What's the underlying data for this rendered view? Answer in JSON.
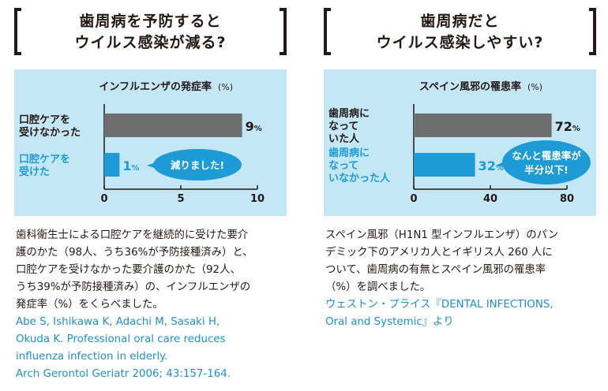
{
  "panels": [
    {
      "headline": [
        "歯周病を予防すると",
        "ウイルス感染が減る?"
      ],
      "caption": [
        "歯科衛生士による口腔ケアを継続的に受けた要介",
        "護のかた（98人、うち36%が予防接種済み）と、",
        "口腔ケアを受けなかった要介護のかた（92人、",
        "うち39%が予防接種済み）の、インフルエンザの",
        "発症率（%）をくらべました。"
      ],
      "reference": [
        "Abe S, Ishikawa K, Adachi M, Sasaki H,",
        "Okuda K. Professional oral care reduces",
        "influenza infection in elderly.",
        "Arch Gerontol Geriatr 2006; 43:157-164."
      ],
      "callout": "減りました!"
    },
    {
      "headline": [
        "歯周病だと",
        "ウイルス感染しやすい?"
      ],
      "caption": [
        "スペイン風邪（H1N1 型インフルエンザ）のパン",
        "デミック下のアメリカ人とイギリス人 260 人に",
        "ついて、歯周病の有無とスペイン風邪の罹患率",
        "（%）を調べました。"
      ],
      "reference": [
        "ウェストン・プライス『DENTAL INFECTIONS,",
        "Oral and Systemic』より"
      ],
      "callout": [
        "なんと罹患率が",
        "半分以下!"
      ]
    }
  ],
  "colors": {
    "bar_gray": "#6e6e6e",
    "bar_blue": "#1d9bd7",
    "bg": "#c4e7f6",
    "accent": "#1d8fce"
  },
  "chart_data": [
    {
      "type": "bar",
      "orientation": "horizontal",
      "title": "インフルエンザの発症率",
      "unit_label": "(%)",
      "categories": [
        "口腔ケアを受けなかった",
        "口腔ケアを受けた"
      ],
      "category_lines": [
        [
          "口腔ケアを",
          "受けなかった"
        ],
        [
          "口腔ケアを",
          "受けた"
        ]
      ],
      "values": [
        9,
        1
      ],
      "value_labels": [
        "9",
        "1"
      ],
      "value_unit": "%",
      "xlim": [
        0,
        10
      ],
      "xticks": [
        "0",
        "5",
        "10"
      ],
      "grid": false
    },
    {
      "type": "bar",
      "orientation": "horizontal",
      "title": "スペイン風邪の罹患率",
      "unit_label": "(%)",
      "categories": [
        "歯周病になっていた人",
        "歯周病になっていなかった人"
      ],
      "category_lines": [
        [
          "歯周病に",
          "なって",
          "いた人"
        ],
        [
          "歯周病に",
          "なって",
          "いなかった人"
        ]
      ],
      "values": [
        72,
        32
      ],
      "value_labels": [
        "72",
        "32"
      ],
      "value_unit": "%",
      "xlim": [
        0,
        80
      ],
      "xticks": [
        "0",
        "40",
        "80"
      ],
      "grid": false
    }
  ]
}
